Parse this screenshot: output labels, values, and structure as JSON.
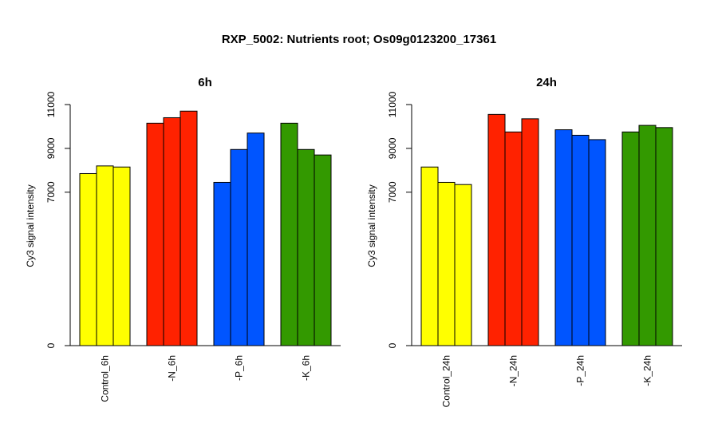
{
  "figure": {
    "title": "RXP_5002: Nutrients root; Os09g0123200_17361"
  },
  "chart_data": [
    {
      "type": "bar",
      "title": "6h",
      "xlabel": "",
      "ylabel": "Cy3 signal intensity",
      "ylim": [
        0,
        11000
      ],
      "yticks": [
        0,
        7000,
        9000,
        11000
      ],
      "categories": [
        "Control_6h",
        "-N_6h",
        "-P_6h",
        "-K_6h"
      ],
      "colors": [
        "#ffff00",
        "#ff2200",
        "#0055ff",
        "#339900"
      ],
      "values": [
        [
          7850,
          8200,
          8150
        ],
        [
          10150,
          10400,
          10700
        ],
        [
          7450,
          8950,
          9700
        ],
        [
          10150,
          8950,
          8700
        ]
      ]
    },
    {
      "type": "bar",
      "title": "24h",
      "xlabel": "",
      "ylabel": "Cy3 signal intensity",
      "ylim": [
        0,
        11000
      ],
      "yticks": [
        0,
        7000,
        9000,
        11000
      ],
      "categories": [
        "Control_24h",
        "-N_24h",
        "-P_24h",
        "-K_24h"
      ],
      "colors": [
        "#ffff00",
        "#ff2200",
        "#0055ff",
        "#339900"
      ],
      "values": [
        [
          8150,
          7450,
          7350
        ],
        [
          10550,
          9750,
          10350
        ],
        [
          9850,
          9600,
          9400
        ],
        [
          9750,
          10050,
          9950
        ]
      ]
    }
  ]
}
